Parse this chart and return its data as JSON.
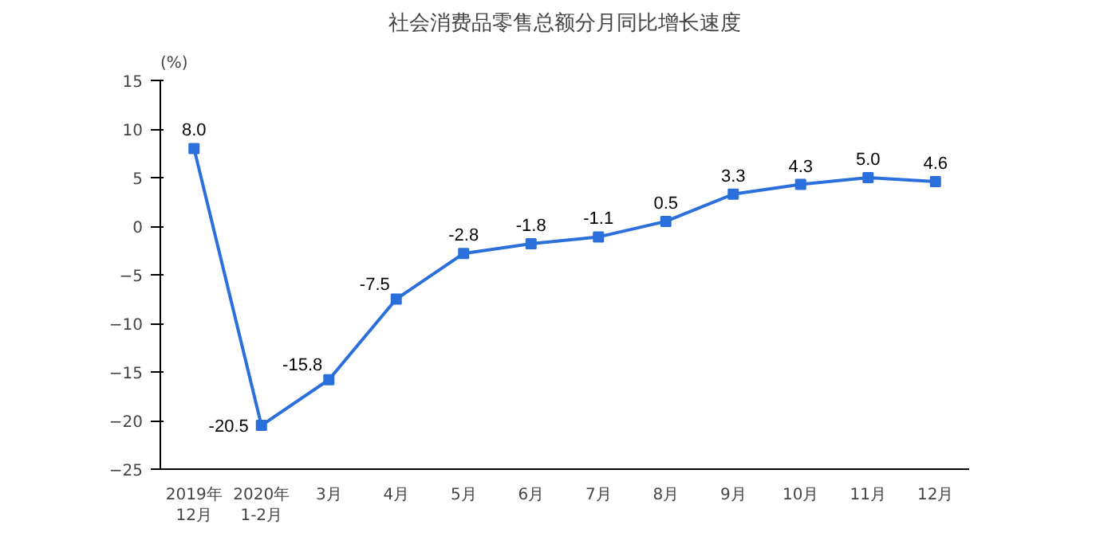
{
  "chart_data": {
    "type": "line",
    "title": "社会消费品零售总额分月同比增长速度",
    "ylabel": "(%)",
    "categories": [
      "2019年\n12月",
      "2020年\n1-2月",
      "3月",
      "4月",
      "5月",
      "6月",
      "7月",
      "8月",
      "9月",
      "10月",
      "11月",
      "12月"
    ],
    "series": [
      {
        "color": "#2a6fdb",
        "values": [
          8.0,
          -20.5,
          -15.8,
          -7.5,
          -2.8,
          -1.8,
          -1.1,
          0.5,
          3.3,
          4.3,
          5.0,
          4.6
        ],
        "value_labels": [
          "8.0",
          "-20.5",
          "-15.8",
          "-7.5",
          "-2.8",
          "-1.8",
          "-1.1",
          "0.5",
          "3.3",
          "4.3",
          "5.0",
          "4.6"
        ]
      }
    ],
    "ylim": [
      -25,
      15
    ],
    "yticks": [
      -25,
      -20,
      -15,
      -10,
      -5,
      0,
      5,
      10,
      15
    ],
    "grid": false,
    "marker": "square",
    "line_style": "solid"
  }
}
